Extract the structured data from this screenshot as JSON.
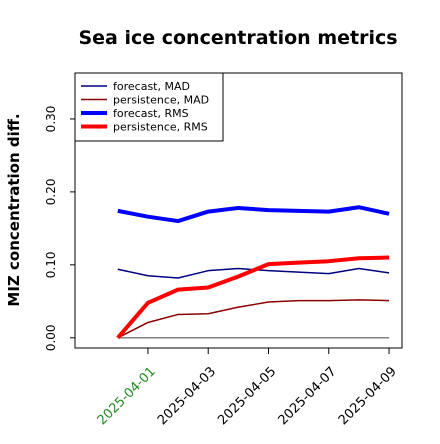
{
  "chart_data": {
    "type": "line",
    "title": "Sea ice concentration metrics",
    "ylabel": "MIZ concentration diff.",
    "x": [
      "2025-03-31",
      "2025-04-01",
      "2025-04-02",
      "2025-04-03",
      "2025-04-04",
      "2025-04-05",
      "2025-04-06",
      "2025-04-07",
      "2025-04-08",
      "2025-04-09"
    ],
    "series": [
      {
        "name": "forecast,  MAD",
        "color": "#000080",
        "linewidth": 1.5,
        "values": [
          0.094,
          0.085,
          0.082,
          0.092,
          0.095,
          0.092,
          0.09,
          0.088,
          0.095,
          0.089
        ]
      },
      {
        "name": "persistence, MAD",
        "color": "#8b0000",
        "linewidth": 1.5,
        "values": [
          0.0,
          0.021,
          0.032,
          0.033,
          0.042,
          0.049,
          0.051,
          0.051,
          0.052,
          0.051
        ]
      },
      {
        "name": "forecast,  RMS",
        "color": "#0000ff",
        "linewidth": 4,
        "values": [
          0.174,
          0.166,
          0.16,
          0.173,
          0.178,
          0.175,
          0.174,
          0.173,
          0.179,
          0.17
        ]
      },
      {
        "name": "persistence, RMS",
        "color": "#ff0000",
        "linewidth": 4,
        "values": [
          0.0,
          0.048,
          0.066,
          0.069,
          0.084,
          0.101,
          0.103,
          0.105,
          0.109,
          0.11
        ]
      }
    ],
    "reference_line": {
      "value": 0,
      "color": "#808080"
    },
    "ylim": [
      -0.014,
      0.363
    ],
    "yticks": [
      {
        "value": 0,
        "label": "0.00"
      },
      {
        "value": 0.1,
        "label": "0.10"
      },
      {
        "value": 0.2,
        "label": "0.20"
      },
      {
        "value": 0.3,
        "label": "0.30"
      }
    ],
    "xticks": [
      "2025-04-01",
      "2025-04-03",
      "2025-04-05",
      "2025-04-07",
      "2025-04-09"
    ],
    "xtick_label_colors": [
      "#228b22",
      "#000000",
      "#000000",
      "#000000",
      "#000000"
    ],
    "legend": "upper left",
    "grid": false
  }
}
